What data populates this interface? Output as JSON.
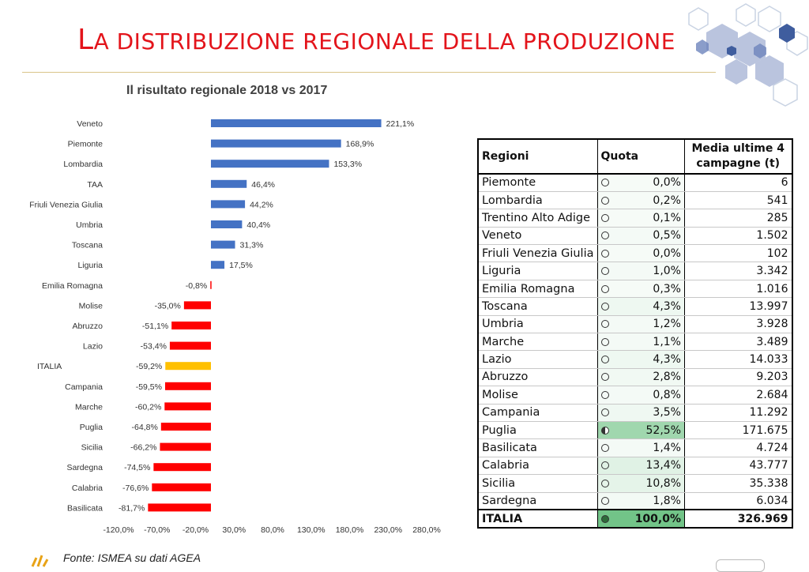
{
  "page": {
    "title": "La distribuzione regionale della produzione",
    "chart_title": "Il risultato regionale 2018 vs 2017",
    "source": "Fonte: ISMEA su dati AGEA"
  },
  "colors": {
    "positive": "#4472c4",
    "negative": "#ff0000",
    "total": "#ffc000",
    "title": "#e3141b"
  },
  "chart_data": {
    "type": "bar",
    "orientation": "horizontal",
    "title": "Il risultato regionale 2018 vs 2017",
    "categories": [
      "Veneto",
      "Piemonte",
      "Lombardia",
      "TAA",
      "Friuli Venezia Giulia",
      "Umbria",
      "Toscana",
      "Liguria",
      "Emilia Romagna",
      "Molise",
      "Abruzzo",
      "Lazio",
      "ITALIA",
      "Campania",
      "Marche",
      "Puglia",
      "Sicilia",
      "Sardegna",
      "Calabria",
      "Basilicata"
    ],
    "values": [
      221.1,
      168.9,
      153.3,
      46.4,
      44.2,
      40.4,
      31.3,
      17.5,
      -0.8,
      -35.0,
      -51.1,
      -53.4,
      -59.2,
      -59.5,
      -60.2,
      -64.8,
      -66.2,
      -74.5,
      -76.6,
      -81.7
    ],
    "labels": [
      "221,1%",
      "168,9%",
      "153,3%",
      "46,4%",
      "44,2%",
      "40,4%",
      "31,3%",
      "17,5%",
      "-0,8%",
      "-35,0%",
      "-51,1%",
      "-53,4%",
      "-59,2%",
      "-59,5%",
      "-60,2%",
      "-64,8%",
      "-66,2%",
      "-74,5%",
      "-76,6%",
      "-81,7%"
    ],
    "xlim": [
      -120,
      280
    ],
    "xticks": [
      -120,
      -70,
      -20,
      30,
      80,
      130,
      180,
      230,
      280
    ],
    "xtick_labels": [
      "-120,0%",
      "-70,0%",
      "-20,0%",
      "30,0%",
      "80,0%",
      "130,0%",
      "180,0%",
      "230,0%",
      "280,0%"
    ],
    "xlabel": "",
    "ylabel": ""
  },
  "table": {
    "headers": {
      "region": "Regioni",
      "quota": "Quota",
      "media_line1": "Media ultime 4",
      "media_line2": "campagne (t)"
    },
    "rows": [
      {
        "region": "Piemonte",
        "quota": "0,0%",
        "share": 0.0,
        "icon": "empty-circle",
        "media": "6"
      },
      {
        "region": "Lombardia",
        "quota": "0,2%",
        "share": 0.2,
        "icon": "empty-circle",
        "media": "541"
      },
      {
        "region": "Trentino Alto Adige",
        "quota": "0,1%",
        "share": 0.1,
        "icon": "empty-circle",
        "media": "285"
      },
      {
        "region": "Veneto",
        "quota": "0,5%",
        "share": 0.5,
        "icon": "empty-circle",
        "media": "1.502"
      },
      {
        "region": "Friuli Venezia Giulia",
        "quota": "0,0%",
        "share": 0.0,
        "icon": "empty-circle",
        "media": "102"
      },
      {
        "region": "Liguria",
        "quota": "1,0%",
        "share": 1.0,
        "icon": "empty-circle",
        "media": "3.342"
      },
      {
        "region": "Emilia Romagna",
        "quota": "0,3%",
        "share": 0.3,
        "icon": "empty-circle",
        "media": "1.016"
      },
      {
        "region": "Toscana",
        "quota": "4,3%",
        "share": 4.3,
        "icon": "empty-circle",
        "media": "13.997"
      },
      {
        "region": "Umbria",
        "quota": "1,2%",
        "share": 1.2,
        "icon": "empty-circle",
        "media": "3.928"
      },
      {
        "region": "Marche",
        "quota": "1,1%",
        "share": 1.1,
        "icon": "empty-circle",
        "media": "3.489"
      },
      {
        "region": "Lazio",
        "quota": "4,3%",
        "share": 4.3,
        "icon": "empty-circle",
        "media": "14.033"
      },
      {
        "region": "Abruzzo",
        "quota": "2,8%",
        "share": 2.8,
        "icon": "empty-circle",
        "media": "9.203"
      },
      {
        "region": "Molise",
        "quota": "0,8%",
        "share": 0.8,
        "icon": "empty-circle",
        "media": "2.684"
      },
      {
        "region": "Campania",
        "quota": "3,5%",
        "share": 3.5,
        "icon": "empty-circle",
        "media": "11.292"
      },
      {
        "region": "Puglia",
        "quota": "52,5%",
        "share": 52.5,
        "icon": "half-circle",
        "media": "171.675"
      },
      {
        "region": "Basilicata",
        "quota": "1,4%",
        "share": 1.4,
        "icon": "empty-circle",
        "media": "4.724"
      },
      {
        "region": "Calabria",
        "quota": "13,4%",
        "share": 13.4,
        "icon": "empty-circle",
        "media": "43.777"
      },
      {
        "region": "Sicilia",
        "quota": "10,8%",
        "share": 10.8,
        "icon": "empty-circle",
        "media": "35.338"
      },
      {
        "region": "Sardegna",
        "quota": "1,8%",
        "share": 1.8,
        "icon": "empty-circle",
        "media": "6.034"
      }
    ],
    "total": {
      "region": "ITALIA",
      "quota": "100,0%",
      "share": 100.0,
      "icon": "full-circle",
      "media": "326.969"
    }
  }
}
